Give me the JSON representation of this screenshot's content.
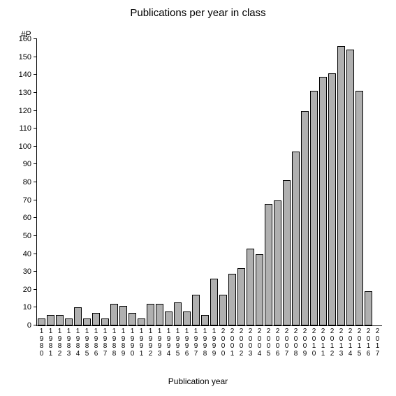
{
  "chart": {
    "type": "bar",
    "title": "Publications per year in class",
    "title_fontsize": 15,
    "ylabel": "#P",
    "xlabel": "Publication year",
    "label_fontsize": 12,
    "categories": [
      "1980",
      "1981",
      "1982",
      "1983",
      "1984",
      "1985",
      "1986",
      "1987",
      "1988",
      "1989",
      "1990",
      "1991",
      "1992",
      "1993",
      "1994",
      "1995",
      "1996",
      "1997",
      "1998",
      "1999",
      "2000",
      "2001",
      "2002",
      "2003",
      "2004",
      "2005",
      "2006",
      "2007",
      "2008",
      "2009",
      "2010",
      "2011",
      "2012",
      "2013",
      "2014",
      "2015",
      "2016",
      "2017"
    ],
    "values": [
      4,
      6,
      6,
      4,
      10,
      4,
      7,
      4,
      12,
      11,
      7,
      4,
      12,
      12,
      8,
      13,
      8,
      17,
      6,
      26,
      17,
      29,
      32,
      43,
      40,
      68,
      70,
      81,
      97,
      120,
      131,
      139,
      141,
      156,
      154,
      131,
      19,
      0
    ],
    "bar_fill": "#b0b0b0",
    "bar_border": "#000000",
    "background_color": "#ffffff",
    "ylim": [
      0,
      160
    ],
    "ytick_step": 10,
    "bar_gap_ratio": 0.1,
    "tick_fontsize": 11,
    "xtick_fontsize": 10
  }
}
